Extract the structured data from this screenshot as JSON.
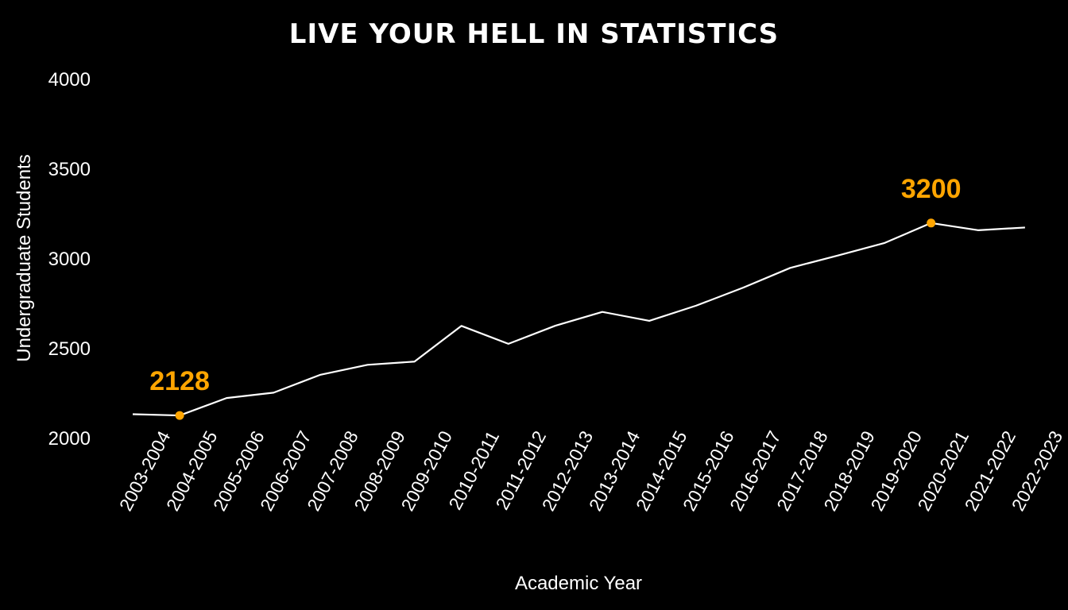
{
  "chart_data": {
    "type": "line",
    "title": "LIVE YOUR HELL IN STATISTICS",
    "xlabel": "Academic Year",
    "ylabel": "Undergraduate Students",
    "categories": [
      "2003-2004",
      "2004-2005",
      "2005-2006",
      "2006-2007",
      "2007-2008",
      "2008-2009",
      "2009-2010",
      "2010-2011",
      "2011-2012",
      "2012-2013",
      "2013-2014",
      "2014-2015",
      "2015-2016",
      "2016-2017",
      "2017-2018",
      "2018-2019",
      "2019-2020",
      "2020-2021",
      "2021-2022",
      "2022-2023"
    ],
    "values": [
      2135,
      2128,
      2225,
      2255,
      2355,
      2410,
      2428,
      2627,
      2527,
      2628,
      2705,
      2655,
      2740,
      2840,
      2950,
      3018,
      3088,
      3200,
      3160,
      3175
    ],
    "yticks": [
      2000,
      2500,
      3000,
      3500,
      4000
    ],
    "ylim": [
      2000,
      4000
    ],
    "grid": false,
    "annotations": [
      {
        "index": 1,
        "label": "2128"
      },
      {
        "index": 17,
        "label": "3200"
      }
    ],
    "colors": {
      "background": "#000000",
      "line": "#ffffff",
      "highlight": "#ffa500",
      "text": "#ffffff"
    }
  }
}
